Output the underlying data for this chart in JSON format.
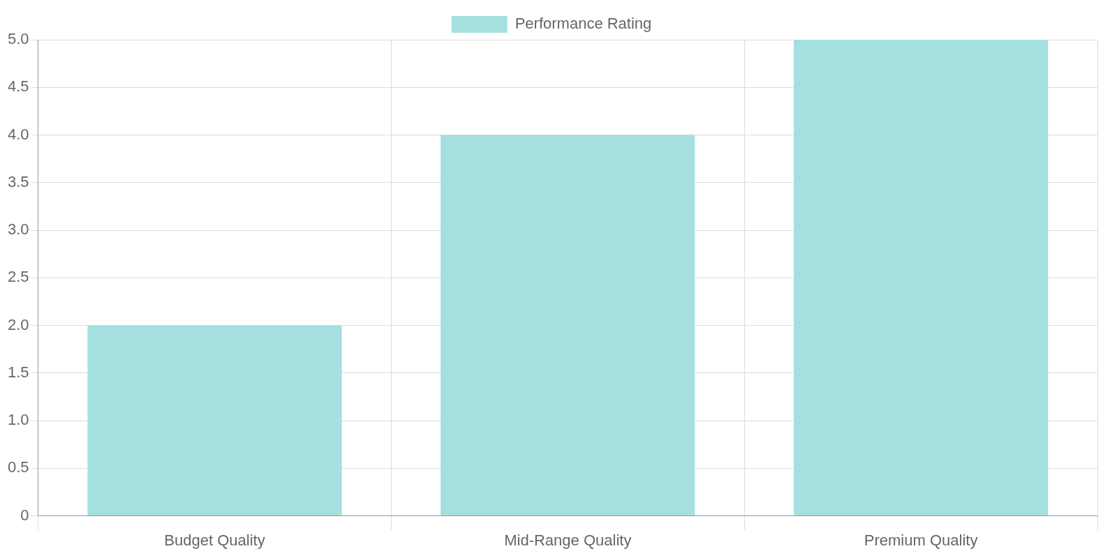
{
  "chart_data": {
    "type": "bar",
    "categories": [
      "Budget Quality",
      "Mid-Range Quality",
      "Premium Quality"
    ],
    "series": [
      {
        "name": "Performance Rating",
        "color": "#a5dfdf",
        "values": [
          2,
          4,
          5
        ]
      }
    ],
    "ylim": [
      0,
      5
    ],
    "yticks": [
      0,
      0.5,
      {
        "value": 1,
        "label": "1.0"
      },
      1.5,
      {
        "value": 2,
        "label": "2.0"
      },
      2.5,
      {
        "value": 3,
        "label": "3.0"
      },
      3.5,
      {
        "value": 4,
        "label": "4.0"
      },
      4.5,
      {
        "value": 5,
        "label": "5.0"
      }
    ],
    "grid": true,
    "legend": "top"
  }
}
